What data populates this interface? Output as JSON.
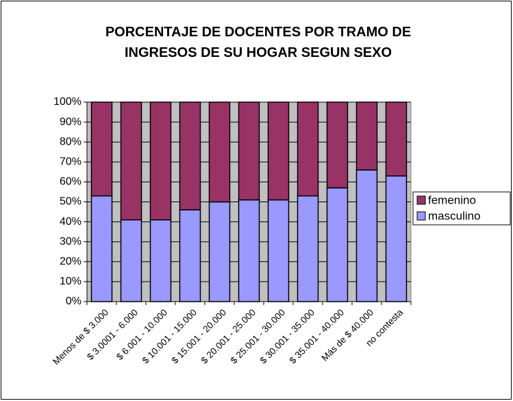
{
  "chart_data": {
    "type": "stacked_bar",
    "title": "PORCENTAJE DE DOCENTES POR TRAMO DE INGRESOS DE SU HOGAR SEGUN SEXO",
    "categories": [
      "Menos de $ 3.000",
      "$ 3.0001 - 6.000",
      "$ 6.001 - 10.000",
      "$ 10.001 - 15.000",
      "$ 15.001 - 20.000",
      "$ 20.001 - 25.000",
      "$ 25.001 - 30.000",
      "$ 30.001 - 35.000",
      "$ 35.001 - 40.000",
      "Más de $ 40.000",
      "no contesta"
    ],
    "series": [
      {
        "name": "masculino",
        "color": "#9999ff",
        "values": [
          53,
          41,
          41,
          46,
          50,
          51,
          51,
          53,
          57,
          66,
          63
        ]
      },
      {
        "name": "femenino",
        "color": "#993366",
        "values": [
          47,
          59,
          59,
          54,
          50,
          49,
          49,
          47,
          43,
          34,
          37
        ]
      }
    ],
    "ylim": [
      0,
      100
    ],
    "yticks": [
      {
        "value": 0,
        "label": "0%"
      },
      {
        "value": 10,
        "label": "10%"
      },
      {
        "value": 20,
        "label": "20%"
      },
      {
        "value": 30,
        "label": "30%"
      },
      {
        "value": 40,
        "label": "40%"
      },
      {
        "value": 50,
        "label": "50%"
      },
      {
        "value": 60,
        "label": "60%"
      },
      {
        "value": 70,
        "label": "70%"
      },
      {
        "value": 80,
        "label": "80%"
      },
      {
        "value": 90,
        "label": "90%"
      },
      {
        "value": 100,
        "label": "100%"
      }
    ],
    "grid": true,
    "legend": "right"
  }
}
